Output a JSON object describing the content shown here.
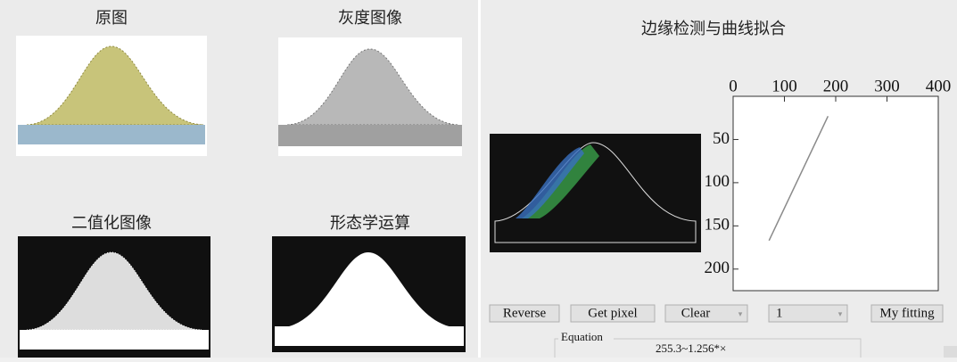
{
  "panels": {
    "original": "原图",
    "gray": "灰度图像",
    "binary": "二值化图像",
    "morph": "形态学运算",
    "edge": "边缘检测与曲线拟合"
  },
  "buttons": {
    "reverse": "Reverse",
    "get_pixel": "Get pixel",
    "clear": "Clear",
    "level": "1",
    "fit": "My fitting"
  },
  "equation": {
    "label": "Equation",
    "text": "255.3~1.256*×"
  },
  "chart_data": {
    "type": "line",
    "x": [
      70,
      185
    ],
    "series": [
      {
        "color": "#8a8a8a",
        "values": [
          167,
          23
        ]
      }
    ],
    "xlim": [
      0,
      400
    ],
    "xticks": [
      0,
      100,
      200,
      300,
      400
    ],
    "ylim": [
      0,
      225
    ],
    "yticks": [
      50,
      100,
      150,
      200
    ],
    "y_inverted": true,
    "x_axis_top": true
  }
}
